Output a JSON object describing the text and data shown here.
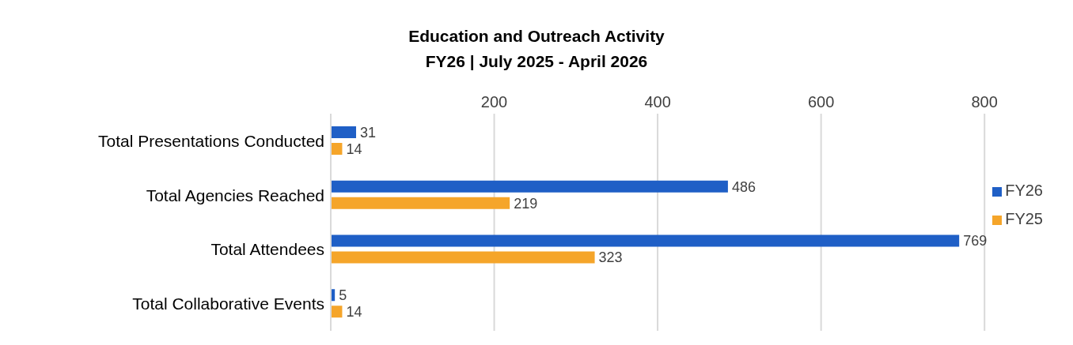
{
  "chart_data": {
    "type": "bar",
    "orientation": "horizontal",
    "title": "Education and Outreach Activity",
    "subtitle": "FY26 | July 2025 - April 2026",
    "categories": [
      "Total Presentations Conducted",
      "Total Agencies Reached",
      "Total Attendees",
      "Total Collaborative Events"
    ],
    "series": [
      {
        "name": "FY26",
        "color": "#1f5fc6",
        "values": [
          31,
          486,
          769,
          5
        ]
      },
      {
        "name": "FY25",
        "color": "#f5a52a",
        "values": [
          14,
          219,
          323,
          14
        ]
      }
    ],
    "xlim": [
      0,
      800
    ],
    "xticks": [
      200,
      400,
      600,
      800
    ],
    "grid": "x",
    "legend": "right",
    "data_labels": true
  }
}
